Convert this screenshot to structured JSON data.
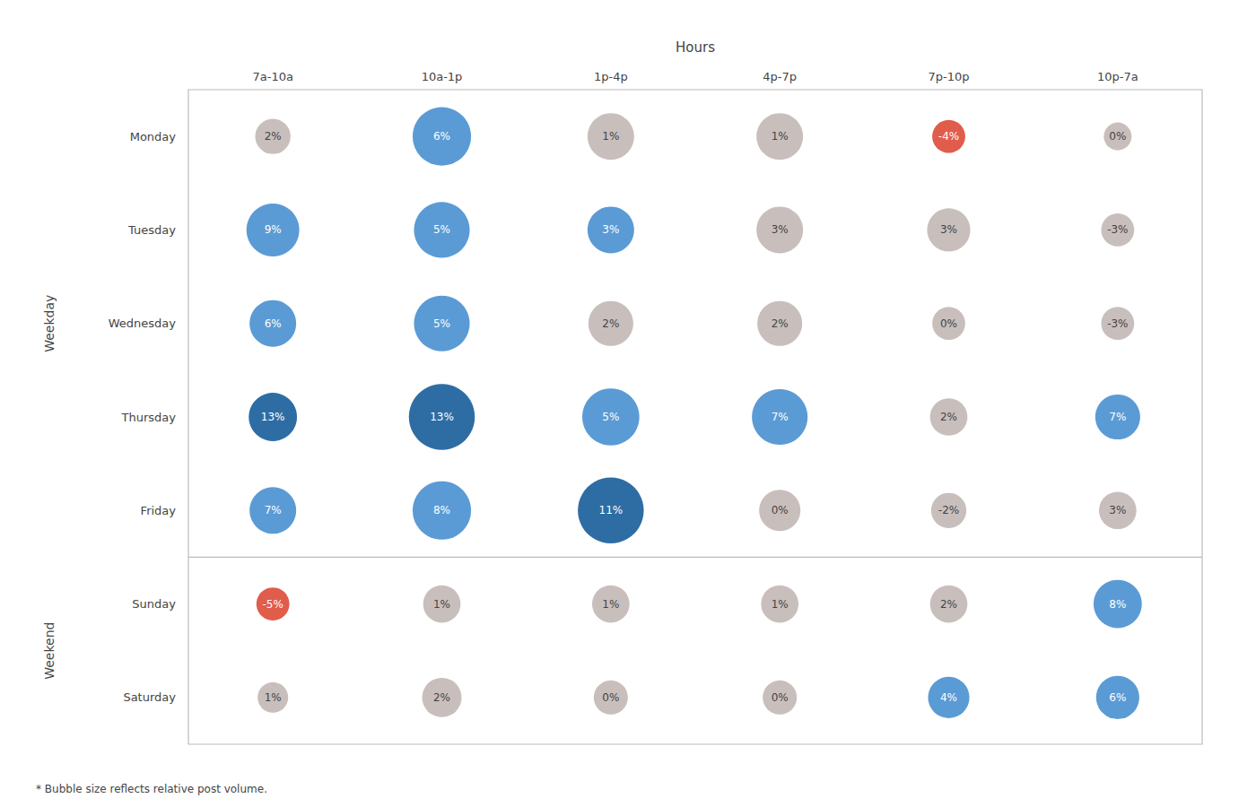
{
  "chart_data": {
    "type": "scatter",
    "xlabel": "Hours",
    "categories": [
      "7a-10a",
      "10a-1p",
      "1p-4p",
      "4p-7p",
      "7p-10p",
      "10p-7a"
    ],
    "rows": [
      "Monday",
      "Tuesday",
      "Wednesday",
      "Thursday",
      "Friday",
      "Sunday",
      "Saturday"
    ],
    "values": [
      [
        2,
        6,
        1,
        1,
        -4,
        0
      ],
      [
        9,
        5,
        3,
        3,
        3,
        -3
      ],
      [
        6,
        5,
        2,
        2,
        0,
        -3
      ],
      [
        13,
        13,
        5,
        7,
        2,
        7
      ],
      [
        7,
        8,
        11,
        0,
        -2,
        3
      ],
      [
        -5,
        1,
        1,
        1,
        2,
        8
      ],
      [
        1,
        2,
        0,
        0,
        4,
        6
      ]
    ],
    "value_labels": [
      [
        "2%",
        "6%",
        "1%",
        "1%",
        "-4%",
        "0%"
      ],
      [
        "9%",
        "5%",
        "3%",
        "3%",
        "3%",
        "-3%"
      ],
      [
        "6%",
        "5%",
        "2%",
        "2%",
        "0%",
        "-3%"
      ],
      [
        "13%",
        "13%",
        "5%",
        "7%",
        "2%",
        "7%"
      ],
      [
        "7%",
        "8%",
        "11%",
        "0%",
        "-2%",
        "3%"
      ],
      [
        "-5%",
        "1%",
        "1%",
        "1%",
        "2%",
        "8%"
      ],
      [
        "1%",
        "2%",
        "0%",
        "0%",
        "4%",
        "6%"
      ]
    ],
    "bubble_sizes": [
      [
        800,
        2200,
        1400,
        1400,
        700,
        500
      ],
      [
        1800,
        2000,
        1400,
        1400,
        1200,
        700
      ],
      [
        1400,
        2000,
        1300,
        1300,
        700,
        700
      ],
      [
        1500,
        2800,
        2100,
        2000,
        900,
        1300
      ],
      [
        1400,
        2200,
        2800,
        1100,
        800,
        900
      ],
      [
        700,
        900,
        900,
        900,
        900,
        1500
      ],
      [
        600,
        1000,
        750,
        750,
        1100,
        1200
      ]
    ],
    "colors": [
      [
        "#c8bfbd",
        "#5b9bd5",
        "#c8bfbd",
        "#c8bfbd",
        "#e05c4b",
        "#c8bfbd"
      ],
      [
        "#5b9bd5",
        "#5b9bd5",
        "#5b9bd5",
        "#c8bfbd",
        "#c8bfbd",
        "#c8bfbd"
      ],
      [
        "#5b9bd5",
        "#5b9bd5",
        "#c8bfbd",
        "#c8bfbd",
        "#c8bfbd",
        "#c8bfbd"
      ],
      [
        "#2e6da4",
        "#2e6da4",
        "#5b9bd5",
        "#5b9bd5",
        "#c8bfbd",
        "#5b9bd5"
      ],
      [
        "#5b9bd5",
        "#5b9bd5",
        "#2e6da4",
        "#c8bfbd",
        "#c8bfbd",
        "#c8bfbd"
      ],
      [
        "#e05c4b",
        "#c8bfbd",
        "#c8bfbd",
        "#c8bfbd",
        "#c8bfbd",
        "#5b9bd5"
      ],
      [
        "#c8bfbd",
        "#c8bfbd",
        "#c8bfbd",
        "#c8bfbd",
        "#5b9bd5",
        "#5b9bd5"
      ]
    ],
    "row_groups": [
      {
        "label": "Weekday",
        "rows": [
          "Monday",
          "Tuesday",
          "Wednesday",
          "Thursday",
          "Friday"
        ]
      },
      {
        "label": "Weekend",
        "rows": [
          "Sunday",
          "Saturday"
        ]
      }
    ],
    "footnote": "* Bubble size reflects relative post volume.",
    "data_labels": true,
    "grid": false
  }
}
